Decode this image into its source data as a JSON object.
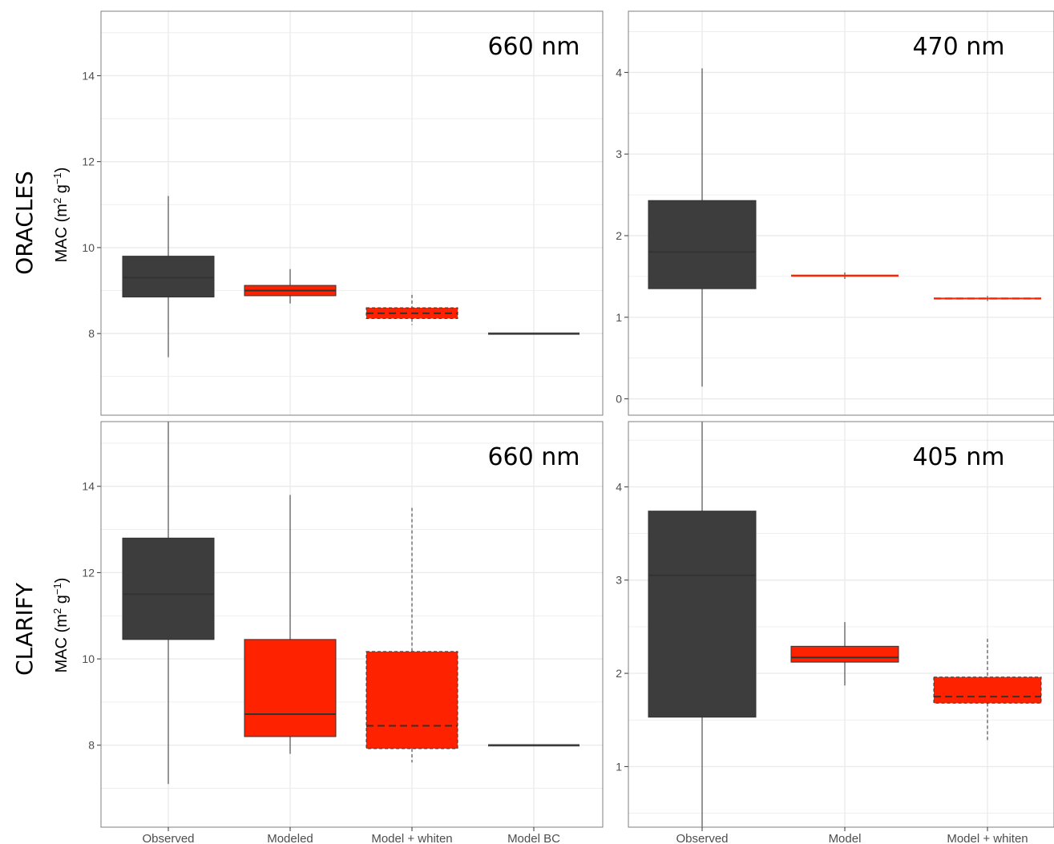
{
  "row_labels": [
    "ORACLES",
    "CLARIFY"
  ],
  "ylabel_base": "MAC (m",
  "ylabel_sup1": "2",
  "ylabel_mid": " g",
  "ylabel_sup2": "−1",
  "ylabel_close": ")",
  "colors": {
    "observed": "#3d3d3d",
    "model": "#ff2200",
    "grid": "#ebebeb",
    "border": "#7f7f7f"
  },
  "chart_data": [
    {
      "type": "boxplot",
      "title": "660 nm",
      "row": "ORACLES",
      "categories": [
        "Observed",
        "Modeled",
        "Model + whiten",
        "Model BC"
      ],
      "ylim": [
        6.1,
        15.5
      ],
      "yticks": [
        8,
        10,
        12,
        14
      ],
      "boxes": [
        {
          "category": "Observed",
          "min": 7.45,
          "q1": 8.85,
          "median": 9.3,
          "q3": 9.8,
          "max": 11.2,
          "fill": "observed",
          "dashed": false
        },
        {
          "category": "Modeled",
          "min": 8.7,
          "q1": 8.88,
          "median": 9.0,
          "q3": 9.12,
          "max": 9.5,
          "fill": "model",
          "dashed": false
        },
        {
          "category": "Model + whiten",
          "min": 8.2,
          "q1": 8.35,
          "median": 8.47,
          "q3": 8.6,
          "max": 8.9,
          "fill": "model",
          "dashed": true
        },
        {
          "category": "Model BC",
          "min": 8.0,
          "q1": 8.0,
          "median": 8.0,
          "q3": 8.0,
          "max": 8.0,
          "fill": "observed",
          "dashed": false
        }
      ]
    },
    {
      "type": "boxplot",
      "title": "470 nm",
      "row": "ORACLES",
      "categories": [
        "Observed",
        "Model",
        "Model + whiten"
      ],
      "ylim": [
        -0.2,
        4.75
      ],
      "yticks": [
        0,
        1,
        2,
        3,
        4
      ],
      "boxes": [
        {
          "category": "Observed",
          "min": 0.15,
          "q1": 1.35,
          "median": 1.8,
          "q3": 2.43,
          "max": 4.05,
          "fill": "observed",
          "dashed": false
        },
        {
          "category": "Model",
          "min": 1.47,
          "q1": 1.5,
          "median": 1.51,
          "q3": 1.52,
          "max": 1.55,
          "fill": "model",
          "dashed": false
        },
        {
          "category": "Model + whiten",
          "min": 1.2,
          "q1": 1.22,
          "median": 1.23,
          "q3": 1.24,
          "max": 1.26,
          "fill": "model",
          "dashed": true
        }
      ]
    },
    {
      "type": "boxplot",
      "title": "660 nm",
      "row": "CLARIFY",
      "categories": [
        "Observed",
        "Modeled",
        "Model + whiten",
        "Model BC"
      ],
      "ylim": [
        6.1,
        15.5
      ],
      "yticks": [
        8,
        10,
        12,
        14
      ],
      "boxes": [
        {
          "category": "Observed",
          "min": 7.1,
          "q1": 10.45,
          "median": 11.5,
          "q3": 12.8,
          "max": 15.5,
          "fill": "observed",
          "dashed": false
        },
        {
          "category": "Modeled",
          "min": 7.8,
          "q1": 8.2,
          "median": 8.72,
          "q3": 10.45,
          "max": 13.8,
          "fill": "model",
          "dashed": false
        },
        {
          "category": "Model + whiten",
          "min": 7.6,
          "q1": 7.92,
          "median": 8.45,
          "q3": 10.17,
          "max": 13.5,
          "fill": "model",
          "dashed": true
        },
        {
          "category": "Model BC",
          "min": 8.0,
          "q1": 8.0,
          "median": 8.0,
          "q3": 8.0,
          "max": 8.0,
          "fill": "observed",
          "dashed": false
        }
      ]
    },
    {
      "type": "boxplot",
      "title": "405 nm",
      "row": "CLARIFY",
      "categories": [
        "Observed",
        "Model",
        "Model + whiten"
      ],
      "ylim": [
        0.35,
        4.7
      ],
      "yticks": [
        1,
        2,
        3,
        4
      ],
      "boxes": [
        {
          "category": "Observed",
          "min": 0.35,
          "q1": 1.53,
          "median": 3.05,
          "q3": 3.74,
          "max": 4.7,
          "fill": "observed",
          "dashed": false
        },
        {
          "category": "Model",
          "min": 1.87,
          "q1": 2.12,
          "median": 2.17,
          "q3": 2.29,
          "max": 2.55,
          "fill": "model",
          "dashed": false
        },
        {
          "category": "Model + whiten",
          "min": 1.27,
          "q1": 1.68,
          "median": 1.75,
          "q3": 1.96,
          "max": 2.37,
          "fill": "model",
          "dashed": true
        }
      ]
    }
  ]
}
